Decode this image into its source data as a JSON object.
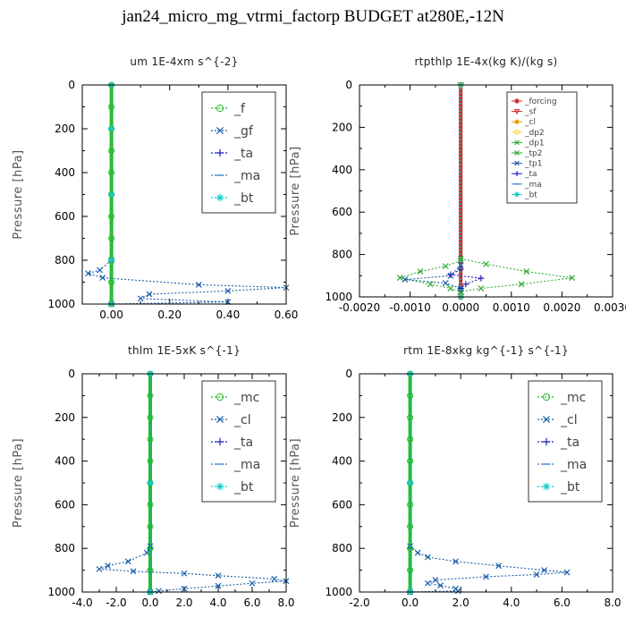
{
  "title": "jan24_micro_mg_vtrmi_factorp  BUDGET at280E,-12N",
  "chart_data": [
    {
      "type": "line",
      "title": "um   1E-4xm s^{-2}",
      "ylabel": "Pressure [hPa]",
      "xlim": [
        -0.1,
        0.6
      ],
      "ylim": [
        1000,
        0
      ],
      "xticks": [
        "0.00",
        "0.20",
        "0.40",
        "0.60"
      ],
      "xtick_values": [
        0,
        0.2,
        0.4,
        0.6
      ],
      "yticks": [
        "0",
        "200",
        "400",
        "600",
        "800",
        "1000"
      ],
      "legend_style": "big",
      "legend_box": "top-right",
      "series": [
        {
          "name": "_f",
          "color": "#22bb22",
          "marker": "o",
          "points": [
            [
              0,
              0
            ],
            [
              0,
              100
            ],
            [
              0,
              200
            ],
            [
              0,
              300
            ],
            [
              0,
              400
            ],
            [
              0,
              500
            ],
            [
              0,
              600
            ],
            [
              0,
              700
            ],
            [
              0,
              800
            ],
            [
              0,
              900
            ],
            [
              0,
              1000
            ]
          ]
        },
        {
          "name": "_gf",
          "color": "#1a5fa8",
          "marker": "x",
          "points": [
            [
              0,
              800
            ],
            [
              -0.04,
              845
            ],
            [
              -0.08,
              860
            ],
            [
              -0.03,
              880
            ],
            [
              0.3,
              912
            ],
            [
              0.6,
              925
            ],
            [
              0.4,
              940
            ],
            [
              0.13,
              955
            ],
            [
              0.1,
              975
            ],
            [
              0.4,
              990
            ],
            [
              0,
              1000
            ]
          ]
        },
        {
          "name": "_ta",
          "color": "#2222bb",
          "marker": "+",
          "points": [
            [
              0,
              0
            ],
            [
              0,
              200
            ],
            [
              0,
              500
            ],
            [
              0,
              800
            ],
            [
              0,
              1000
            ]
          ]
        },
        {
          "name": "_ma",
          "color": "#3377cc",
          "marker": "-",
          "points": [
            [
              0,
              0
            ],
            [
              0,
              500
            ],
            [
              0,
              1000
            ]
          ]
        },
        {
          "name": "_bt",
          "color": "#11cccc",
          "marker": "*",
          "points": [
            [
              0,
              0
            ],
            [
              0,
              200
            ],
            [
              0,
              500
            ],
            [
              0,
              800
            ],
            [
              0,
              1000
            ]
          ]
        }
      ]
    },
    {
      "type": "line",
      "title": "rtpthlp   1E-4x(kg K)/(kg s)",
      "ylabel": "Pressure [hPa]",
      "xlim": [
        -0.002,
        0.003
      ],
      "ylim": [
        1000,
        0
      ],
      "xticks": [
        "-0.0020",
        "-0.0010",
        "0.0000",
        "0.0010",
        "0.0020",
        "0.0030"
      ],
      "xtick_values": [
        -0.002,
        -0.001,
        0,
        0.001,
        0.002,
        0.003
      ],
      "yticks": [
        "0",
        "200",
        "400",
        "600",
        "800",
        "1000"
      ],
      "legend_style": "small",
      "legend_box": "top-right",
      "series": [
        {
          "name": "_forcing",
          "color": "#cc2222",
          "marker": "*",
          "points": [
            [
              0,
              0
            ],
            [
              0,
              1000
            ]
          ]
        },
        {
          "name": "_sf",
          "color": "#cc2222",
          "marker": "v",
          "points": [
            [
              0,
              0
            ],
            [
              0,
              1000
            ]
          ]
        },
        {
          "name": "_cl",
          "color": "#ee9900",
          "marker": "*",
          "points": [
            [
              0,
              0
            ],
            [
              0,
              1000
            ]
          ]
        },
        {
          "name": "_dp2",
          "color": "#ffcc33",
          "marker": "o",
          "points": [
            [
              0,
              0
            ],
            [
              0,
              1000
            ]
          ]
        },
        {
          "name": "_dp1",
          "color": "#33aa33",
          "marker": "x",
          "points": [
            [
              0,
              820
            ],
            [
              0.0005,
              845
            ],
            [
              0.0013,
              880
            ],
            [
              0.0022,
              910
            ],
            [
              0.0012,
              940
            ],
            [
              0.0004,
              960
            ],
            [
              0,
              975
            ]
          ]
        },
        {
          "name": "_tp2",
          "color": "#33aa33",
          "marker": "x",
          "points": [
            [
              0,
              830
            ],
            [
              -0.0003,
              855
            ],
            [
              -0.0008,
              880
            ],
            [
              -0.0012,
              910
            ],
            [
              -0.0006,
              940
            ],
            [
              -0.0002,
              960
            ],
            [
              0,
              975
            ]
          ]
        },
        {
          "name": "_tp1",
          "color": "#1a5fa8",
          "marker": "x",
          "points": [
            [
              0,
              850
            ],
            [
              -0.0002,
              900
            ],
            [
              -0.0011,
              918
            ],
            [
              -0.0003,
              935
            ],
            [
              0,
              960
            ]
          ]
        },
        {
          "name": "_ta",
          "color": "#2222bb",
          "marker": "+",
          "points": [
            [
              0,
              870
            ],
            [
              -0.0002,
              895
            ],
            [
              0.0004,
              912
            ],
            [
              0.0001,
              940
            ],
            [
              0,
              960
            ]
          ]
        },
        {
          "name": "_ma",
          "color": "#3377cc",
          "marker": "-",
          "points": [
            [
              0,
              0
            ],
            [
              0,
              1000
            ]
          ]
        },
        {
          "name": "_bt",
          "color": "#11cccc",
          "marker": "*",
          "points": [
            [
              0,
              0
            ],
            [
              0,
              1000
            ]
          ]
        }
      ]
    },
    {
      "type": "line",
      "title": "thlm   1E-5xK s^{-1}",
      "ylabel": "Pressure [hPa]",
      "xlim": [
        -4,
        8
      ],
      "ylim": [
        1000,
        0
      ],
      "xticks": [
        "-4.0",
        "-2.0",
        "0.0",
        "2.0",
        "4.0",
        "6.0",
        "8.0"
      ],
      "xtick_values": [
        -4,
        -2,
        0,
        2,
        4,
        6,
        8
      ],
      "yticks": [
        "0",
        "200",
        "400",
        "600",
        "800",
        "1000"
      ],
      "legend_style": "big",
      "legend_box": "top-right",
      "series": [
        {
          "name": "_mc",
          "color": "#22bb22",
          "marker": "o",
          "points": [
            [
              0,
              0
            ],
            [
              0,
              100
            ],
            [
              0,
              200
            ],
            [
              0,
              300
            ],
            [
              0,
              400
            ],
            [
              0,
              500
            ],
            [
              0,
              600
            ],
            [
              0,
              700
            ],
            [
              0,
              800
            ],
            [
              0,
              900
            ],
            [
              0,
              1000
            ]
          ]
        },
        {
          "name": "_cl",
          "color": "#1a5fa8",
          "marker": "x",
          "points": [
            [
              0,
              790
            ],
            [
              -0.2,
              820
            ],
            [
              -1.3,
              860
            ],
            [
              -2.5,
              880
            ],
            [
              -3.0,
              895
            ],
            [
              -1.0,
              905
            ],
            [
              2.0,
              915
            ],
            [
              4.0,
              925
            ],
            [
              7.3,
              940
            ],
            [
              8.0,
              950
            ],
            [
              6.0,
              960
            ],
            [
              4.0,
              972
            ],
            [
              2.0,
              985
            ],
            [
              0.5,
              995
            ],
            [
              0,
              1000
            ]
          ]
        },
        {
          "name": "_ta",
          "color": "#2222bb",
          "marker": "+",
          "points": [
            [
              0,
              0
            ],
            [
              0,
              500
            ],
            [
              0,
              1000
            ]
          ]
        },
        {
          "name": "_ma",
          "color": "#3377cc",
          "marker": "-",
          "points": [
            [
              0,
              0
            ],
            [
              0,
              500
            ],
            [
              0,
              1000
            ]
          ]
        },
        {
          "name": "_bt",
          "color": "#11cccc",
          "marker": "*",
          "points": [
            [
              0,
              0
            ],
            [
              0,
              500
            ],
            [
              0,
              1000
            ]
          ]
        }
      ]
    },
    {
      "type": "line",
      "title": "rtm   1E-8xkg kg^{-1} s^{-1}",
      "ylabel": "Pressure [hPa]",
      "xlim": [
        -2,
        8
      ],
      "ylim": [
        1000,
        0
      ],
      "xticks": [
        "-2.0",
        "0.0",
        "2.0",
        "4.0",
        "6.0",
        "8.0"
      ],
      "xtick_values": [
        -2,
        0,
        2,
        4,
        6,
        8
      ],
      "yticks": [
        "0",
        "200",
        "400",
        "600",
        "800",
        "1000"
      ],
      "legend_style": "big",
      "legend_box": "top-right",
      "series": [
        {
          "name": "_mc",
          "color": "#22bb22",
          "marker": "o",
          "points": [
            [
              0,
              0
            ],
            [
              0,
              100
            ],
            [
              0,
              200
            ],
            [
              0,
              300
            ],
            [
              0,
              400
            ],
            [
              0,
              500
            ],
            [
              0,
              600
            ],
            [
              0,
              700
            ],
            [
              0,
              800
            ],
            [
              0,
              900
            ],
            [
              0,
              1000
            ]
          ]
        },
        {
          "name": "_cl",
          "color": "#1a5fa8",
          "marker": "x",
          "points": [
            [
              0,
              790
            ],
            [
              0.3,
              820
            ],
            [
              0.7,
              840
            ],
            [
              1.8,
              860
            ],
            [
              3.5,
              880
            ],
            [
              5.3,
              900
            ],
            [
              6.2,
              910
            ],
            [
              5.0,
              920
            ],
            [
              3.0,
              930
            ],
            [
              1.0,
              945
            ],
            [
              0.7,
              960
            ],
            [
              1.2,
              970
            ],
            [
              1.8,
              985
            ],
            [
              1.9,
              995
            ],
            [
              0,
              1000
            ]
          ]
        },
        {
          "name": "_ta",
          "color": "#2222bb",
          "marker": "+",
          "points": [
            [
              0,
              0
            ],
            [
              0,
              500
            ],
            [
              0,
              1000
            ]
          ]
        },
        {
          "name": "_ma",
          "color": "#3377cc",
          "marker": "-",
          "points": [
            [
              0,
              0
            ],
            [
              0,
              500
            ],
            [
              0,
              1000
            ]
          ]
        },
        {
          "name": "_bt",
          "color": "#11cccc",
          "marker": "*",
          "points": [
            [
              0,
              0
            ],
            [
              0,
              500
            ],
            [
              0,
              1000
            ]
          ]
        }
      ]
    }
  ]
}
